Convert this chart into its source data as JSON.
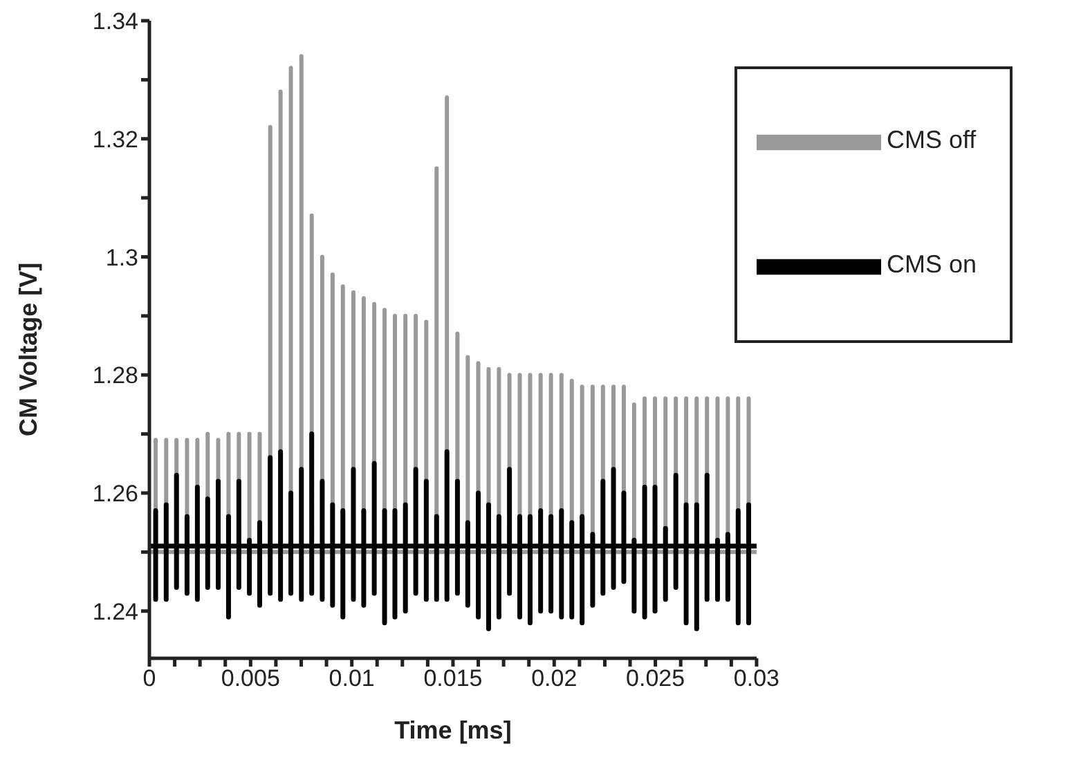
{
  "chart_data": {
    "type": "line",
    "xlabel": "Time [ms]",
    "ylabel": "CM Voltage [V]",
    "xlim": [
      0,
      0.03
    ],
    "ylim": [
      1.232,
      1.34
    ],
    "xticks": [
      0,
      {
        "value": 0.00125,
        "label": null
      },
      {
        "value": 0.0025,
        "label": null
      },
      {
        "value": 0.00375,
        "label": null
      },
      0.005,
      {
        "value": 0.00625,
        "label": null
      },
      {
        "value": 0.0075,
        "label": null
      },
      {
        "value": 0.00875,
        "label": null
      },
      0.01,
      {
        "value": 0.01125,
        "label": null
      },
      {
        "value": 0.0125,
        "label": null
      },
      {
        "value": 0.01375,
        "label": null
      },
      0.015,
      {
        "value": 0.01625,
        "label": null
      },
      {
        "value": 0.0175,
        "label": null
      },
      {
        "value": 0.01875,
        "label": null
      },
      0.02,
      {
        "value": 0.02125,
        "label": null
      },
      {
        "value": 0.0225,
        "label": null
      },
      {
        "value": 0.02375,
        "label": null
      },
      0.025,
      {
        "value": 0.02625,
        "label": null
      },
      {
        "value": 0.0275,
        "label": null
      },
      {
        "value": 0.02875,
        "label": null
      },
      0.03
    ],
    "yticks": [
      1.24,
      {
        "value": 1.25,
        "label": null
      },
      1.26,
      {
        "value": 1.27,
        "label": null
      },
      1.28,
      {
        "value": 1.29,
        "label": null
      },
      1.3,
      {
        "value": 1.31,
        "label": null
      },
      1.32,
      {
        "value": 1.33,
        "label": null
      },
      1.34
    ],
    "grid": false,
    "legend": "top right",
    "series": [
      {
        "name": "CMS off",
        "color": "#999999",
        "x": [
          0,
          0.00031,
          0.00031,
          0.00031,
          0.00083,
          0.00083,
          0.00083,
          0.00134,
          0.00134,
          0.00134,
          0.00186,
          0.00186,
          0.00186,
          0.00237,
          0.00237,
          0.00237,
          0.00288,
          0.00288,
          0.00288,
          0.0034,
          0.0034,
          0.0034,
          0.00391,
          0.00391,
          0.00391,
          0.00442,
          0.00442,
          0.00442,
          0.00494,
          0.00494,
          0.00494,
          0.00545,
          0.00545,
          0.00545,
          0.00597,
          0.00597,
          0.00597,
          0.00648,
          0.00648,
          0.00648,
          0.00699,
          0.00699,
          0.00699,
          0.00751,
          0.00751,
          0.00751,
          0.00802,
          0.00802,
          0.00802,
          0.00854,
          0.00854,
          0.00854,
          0.00905,
          0.00905,
          0.00905,
          0.00956,
          0.00956,
          0.00956,
          0.01008,
          0.01008,
          0.01008,
          0.01059,
          0.01059,
          0.01059,
          0.01111,
          0.01111,
          0.01111,
          0.01162,
          0.01162,
          0.01162,
          0.01213,
          0.01213,
          0.01213,
          0.01265,
          0.01265,
          0.01265,
          0.01316,
          0.01316,
          0.01316,
          0.01368,
          0.01368,
          0.01368,
          0.01419,
          0.01419,
          0.01419,
          0.0147,
          0.0147,
          0.0147,
          0.01522,
          0.01522,
          0.01522,
          0.01573,
          0.01573,
          0.01573,
          0.01625,
          0.01625,
          0.01625,
          0.01676,
          0.01676,
          0.01676,
          0.01727,
          0.01727,
          0.01727,
          0.01779,
          0.01779,
          0.01779,
          0.0183,
          0.0183,
          0.0183,
          0.01881,
          0.01881,
          0.01881,
          0.01933,
          0.01933,
          0.01933,
          0.01984,
          0.01984,
          0.01984,
          0.02036,
          0.02036,
          0.02036,
          0.02087,
          0.02087,
          0.02087,
          0.02138,
          0.02138,
          0.02138,
          0.0219,
          0.0219,
          0.0219,
          0.02241,
          0.02241,
          0.02241,
          0.02293,
          0.02293,
          0.02293,
          0.02344,
          0.02344,
          0.02344,
          0.02395,
          0.02395,
          0.02395,
          0.02447,
          0.02447,
          0.02447,
          0.02498,
          0.02498,
          0.02498,
          0.0255,
          0.0255,
          0.0255,
          0.02601,
          0.02601,
          0.02601,
          0.02652,
          0.02652,
          0.02652,
          0.02704,
          0.02704,
          0.02704,
          0.02755,
          0.02755,
          0.02755,
          0.02807,
          0.02807,
          0.02807,
          0.02858,
          0.02858,
          0.02858,
          0.02909,
          0.02909,
          0.02909,
          0.02961,
          0.02961,
          0.02961,
          0.03
        ],
        "values": [
          1.25,
          1.25,
          1.269,
          1.25,
          1.25,
          1.269,
          1.25,
          1.25,
          1.269,
          1.25,
          1.25,
          1.269,
          1.25,
          1.25,
          1.269,
          1.25,
          1.25,
          1.27,
          1.25,
          1.25,
          1.269,
          1.25,
          1.25,
          1.27,
          1.25,
          1.25,
          1.27,
          1.25,
          1.25,
          1.27,
          1.25,
          1.25,
          1.27,
          1.25,
          1.25,
          1.322,
          1.25,
          1.25,
          1.328,
          1.25,
          1.25,
          1.332,
          1.25,
          1.25,
          1.334,
          1.25,
          1.25,
          1.307,
          1.25,
          1.25,
          1.3,
          1.25,
          1.25,
          1.297,
          1.25,
          1.25,
          1.295,
          1.25,
          1.25,
          1.294,
          1.25,
          1.25,
          1.293,
          1.25,
          1.25,
          1.292,
          1.25,
          1.25,
          1.291,
          1.25,
          1.25,
          1.29,
          1.25,
          1.25,
          1.29,
          1.25,
          1.25,
          1.29,
          1.25,
          1.25,
          1.289,
          1.25,
          1.25,
          1.315,
          1.25,
          1.25,
          1.327,
          1.25,
          1.25,
          1.287,
          1.25,
          1.25,
          1.283,
          1.25,
          1.25,
          1.282,
          1.25,
          1.25,
          1.281,
          1.25,
          1.25,
          1.281,
          1.25,
          1.25,
          1.28,
          1.25,
          1.25,
          1.28,
          1.25,
          1.25,
          1.28,
          1.25,
          1.25,
          1.28,
          1.25,
          1.25,
          1.28,
          1.25,
          1.25,
          1.28,
          1.25,
          1.25,
          1.279,
          1.25,
          1.25,
          1.278,
          1.25,
          1.25,
          1.278,
          1.25,
          1.25,
          1.278,
          1.25,
          1.25,
          1.278,
          1.25,
          1.25,
          1.278,
          1.25,
          1.25,
          1.275,
          1.25,
          1.25,
          1.276,
          1.25,
          1.25,
          1.276,
          1.25,
          1.25,
          1.276,
          1.25,
          1.25,
          1.276,
          1.25,
          1.25,
          1.276,
          1.25,
          1.25,
          1.276,
          1.25,
          1.25,
          1.276,
          1.25,
          1.25,
          1.276,
          1.25,
          1.25,
          1.276,
          1.25,
          1.25,
          1.276,
          1.25,
          1.25,
          1.276,
          1.25,
          1.25
        ]
      },
      {
        "name": "CMS on",
        "color": "#000000",
        "x": [
          0,
          0.00031,
          0.00031,
          0.00031,
          0.00031,
          0.00083,
          0.00083,
          0.00083,
          0.00083,
          0.00134,
          0.00134,
          0.00134,
          0.00134,
          0.00186,
          0.00186,
          0.00186,
          0.00186,
          0.00237,
          0.00237,
          0.00237,
          0.00237,
          0.00288,
          0.00288,
          0.00288,
          0.00288,
          0.0034,
          0.0034,
          0.0034,
          0.0034,
          0.00391,
          0.00391,
          0.00391,
          0.00391,
          0.00442,
          0.00442,
          0.00442,
          0.00442,
          0.00494,
          0.00494,
          0.00494,
          0.00494,
          0.00545,
          0.00545,
          0.00545,
          0.00545,
          0.00597,
          0.00597,
          0.00597,
          0.00597,
          0.00648,
          0.00648,
          0.00648,
          0.00648,
          0.00699,
          0.00699,
          0.00699,
          0.00699,
          0.00751,
          0.00751,
          0.00751,
          0.00751,
          0.00802,
          0.00802,
          0.00802,
          0.00802,
          0.00854,
          0.00854,
          0.00854,
          0.00854,
          0.00905,
          0.00905,
          0.00905,
          0.00905,
          0.00956,
          0.00956,
          0.00956,
          0.00956,
          0.01008,
          0.01008,
          0.01008,
          0.01008,
          0.01059,
          0.01059,
          0.01059,
          0.01059,
          0.01111,
          0.01111,
          0.01111,
          0.01111,
          0.01162,
          0.01162,
          0.01162,
          0.01162,
          0.01213,
          0.01213,
          0.01213,
          0.01213,
          0.01265,
          0.01265,
          0.01265,
          0.01265,
          0.01316,
          0.01316,
          0.01316,
          0.01316,
          0.01368,
          0.01368,
          0.01368,
          0.01368,
          0.01419,
          0.01419,
          0.01419,
          0.01419,
          0.0147,
          0.0147,
          0.0147,
          0.0147,
          0.01522,
          0.01522,
          0.01522,
          0.01522,
          0.01573,
          0.01573,
          0.01573,
          0.01573,
          0.01625,
          0.01625,
          0.01625,
          0.01625,
          0.01676,
          0.01676,
          0.01676,
          0.01676,
          0.01727,
          0.01727,
          0.01727,
          0.01727,
          0.01779,
          0.01779,
          0.01779,
          0.01779,
          0.0183,
          0.0183,
          0.0183,
          0.0183,
          0.01881,
          0.01881,
          0.01881,
          0.01881,
          0.01933,
          0.01933,
          0.01933,
          0.01933,
          0.01984,
          0.01984,
          0.01984,
          0.01984,
          0.02036,
          0.02036,
          0.02036,
          0.02036,
          0.02087,
          0.02087,
          0.02087,
          0.02087,
          0.02138,
          0.02138,
          0.02138,
          0.02138,
          0.0219,
          0.0219,
          0.0219,
          0.0219,
          0.02241,
          0.02241,
          0.02241,
          0.02241,
          0.02293,
          0.02293,
          0.02293,
          0.02293,
          0.02344,
          0.02344,
          0.02344,
          0.02344,
          0.02395,
          0.02395,
          0.02395,
          0.02395,
          0.02447,
          0.02447,
          0.02447,
          0.02447,
          0.02498,
          0.02498,
          0.02498,
          0.02498,
          0.0255,
          0.0255,
          0.0255,
          0.0255,
          0.02601,
          0.02601,
          0.02601,
          0.02601,
          0.02652,
          0.02652,
          0.02652,
          0.02652,
          0.02704,
          0.02704,
          0.02704,
          0.02704,
          0.02755,
          0.02755,
          0.02755,
          0.02755,
          0.02807,
          0.02807,
          0.02807,
          0.02807,
          0.02858,
          0.02858,
          0.02858,
          0.02858,
          0.02909,
          0.02909,
          0.02909,
          0.02909,
          0.02961,
          0.02961,
          0.02961,
          0.02961,
          0.03
        ],
        "values": [
          1.251,
          1.251,
          1.257,
          1.242,
          1.251,
          1.251,
          1.258,
          1.242,
          1.251,
          1.251,
          1.263,
          1.244,
          1.251,
          1.251,
          1.256,
          1.243,
          1.251,
          1.251,
          1.261,
          1.242,
          1.251,
          1.251,
          1.259,
          1.244,
          1.251,
          1.251,
          1.262,
          1.244,
          1.251,
          1.251,
          1.256,
          1.239,
          1.251,
          1.251,
          1.262,
          1.244,
          1.251,
          1.251,
          1.252,
          1.243,
          1.251,
          1.251,
          1.255,
          1.241,
          1.251,
          1.251,
          1.266,
          1.243,
          1.251,
          1.251,
          1.267,
          1.242,
          1.251,
          1.251,
          1.26,
          1.243,
          1.251,
          1.251,
          1.264,
          1.242,
          1.251,
          1.251,
          1.27,
          1.243,
          1.251,
          1.251,
          1.262,
          1.242,
          1.251,
          1.251,
          1.258,
          1.241,
          1.251,
          1.251,
          1.257,
          1.239,
          1.251,
          1.251,
          1.264,
          1.242,
          1.251,
          1.251,
          1.257,
          1.241,
          1.251,
          1.251,
          1.265,
          1.243,
          1.251,
          1.251,
          1.257,
          1.238,
          1.251,
          1.251,
          1.257,
          1.239,
          1.251,
          1.251,
          1.258,
          1.24,
          1.251,
          1.251,
          1.264,
          1.243,
          1.251,
          1.251,
          1.262,
          1.242,
          1.251,
          1.251,
          1.256,
          1.242,
          1.251,
          1.251,
          1.267,
          1.242,
          1.251,
          1.251,
          1.262,
          1.243,
          1.251,
          1.251,
          1.255,
          1.241,
          1.251,
          1.251,
          1.26,
          1.239,
          1.251,
          1.251,
          1.258,
          1.237,
          1.251,
          1.251,
          1.256,
          1.239,
          1.251,
          1.251,
          1.264,
          1.243,
          1.251,
          1.251,
          1.256,
          1.239,
          1.251,
          1.251,
          1.256,
          1.238,
          1.251,
          1.251,
          1.257,
          1.24,
          1.251,
          1.251,
          1.256,
          1.24,
          1.251,
          1.251,
          1.257,
          1.239,
          1.251,
          1.251,
          1.255,
          1.239,
          1.251,
          1.251,
          1.256,
          1.238,
          1.251,
          1.251,
          1.253,
          1.241,
          1.251,
          1.251,
          1.262,
          1.243,
          1.251,
          1.251,
          1.264,
          1.244,
          1.251,
          1.251,
          1.26,
          1.245,
          1.251,
          1.251,
          1.252,
          1.24,
          1.251,
          1.251,
          1.261,
          1.239,
          1.251,
          1.251,
          1.261,
          1.24,
          1.251,
          1.251,
          1.254,
          1.242,
          1.251,
          1.251,
          1.263,
          1.244,
          1.251,
          1.251,
          1.258,
          1.238,
          1.251,
          1.251,
          1.258,
          1.237,
          1.251,
          1.251,
          1.263,
          1.242,
          1.251,
          1.251,
          1.252,
          1.242,
          1.251,
          1.251,
          1.253,
          1.242,
          1.251,
          1.251,
          1.257,
          1.238,
          1.251,
          1.251,
          1.258,
          1.238,
          1.251,
          1.251
        ]
      }
    ]
  }
}
